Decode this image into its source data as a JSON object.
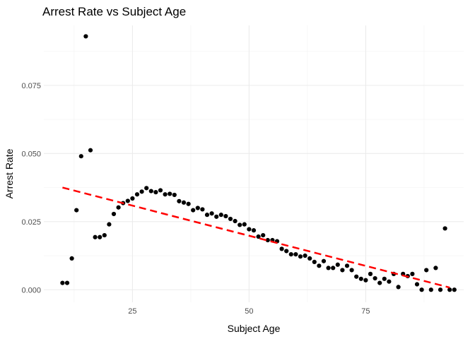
{
  "chart_data": {
    "type": "scatter",
    "title": "Arrest Rate vs Subject Age",
    "xlabel": "Subject Age",
    "ylabel": "Arrest Rate",
    "xlim": [
      6.0,
      96.0
    ],
    "ylim": [
      -0.0046,
      0.097
    ],
    "x_ticks": [
      25,
      50,
      75
    ],
    "x_tick_labels": [
      "25",
      "50",
      "75"
    ],
    "y_ticks": [
      0.0,
      0.025,
      0.05,
      0.075
    ],
    "y_tick_labels": [
      "0.000",
      "0.025",
      "0.050",
      "0.075"
    ],
    "grid": true,
    "point_color": "#000000",
    "trend_color": "#ff0000",
    "trend_style": "dashed",
    "trend_line": {
      "x": [
        10,
        93
      ],
      "y": [
        0.0375,
        0.0008
      ]
    },
    "points": {
      "x": [
        10,
        11,
        12,
        13,
        14,
        15,
        16,
        17,
        18,
        19,
        20,
        21,
        22,
        23,
        24,
        25,
        26,
        27,
        28,
        29,
        30,
        31,
        32,
        33,
        34,
        35,
        36,
        37,
        38,
        39,
        40,
        41,
        42,
        43,
        44,
        45,
        46,
        47,
        48,
        49,
        50,
        51,
        52,
        53,
        54,
        55,
        56,
        57,
        58,
        59,
        60,
        61,
        62,
        63,
        64,
        65,
        66,
        67,
        68,
        69,
        70,
        71,
        72,
        73,
        74,
        75,
        76,
        77,
        78,
        79,
        80,
        81,
        82,
        83,
        84,
        85,
        86,
        87,
        88,
        89,
        90,
        91,
        92,
        93,
        94
      ],
      "y": [
        0.0025,
        0.0025,
        0.0115,
        0.0292,
        0.049,
        0.093,
        0.0512,
        0.0193,
        0.0193,
        0.02,
        0.024,
        0.0278,
        0.0302,
        0.0318,
        0.0326,
        0.0335,
        0.035,
        0.036,
        0.0373,
        0.0362,
        0.0358,
        0.0365,
        0.035,
        0.0352,
        0.0348,
        0.0325,
        0.032,
        0.0315,
        0.0292,
        0.03,
        0.0295,
        0.0275,
        0.028,
        0.0268,
        0.0275,
        0.027,
        0.026,
        0.0252,
        0.0238,
        0.024,
        0.0222,
        0.0218,
        0.0195,
        0.02,
        0.0182,
        0.0182,
        0.0178,
        0.015,
        0.0142,
        0.013,
        0.013,
        0.0122,
        0.0125,
        0.0115,
        0.0102,
        0.0088,
        0.0105,
        0.008,
        0.008,
        0.0092,
        0.0072,
        0.0088,
        0.0072,
        0.0048,
        0.004,
        0.0035,
        0.0058,
        0.0042,
        0.0025,
        0.004,
        0.003,
        0.0058,
        0.001,
        0.0058,
        0.005,
        0.0058,
        0.002,
        0.0,
        0.0072,
        0.0,
        0.008,
        0.0,
        0.0225,
        0.0,
        0.0
      ]
    }
  }
}
